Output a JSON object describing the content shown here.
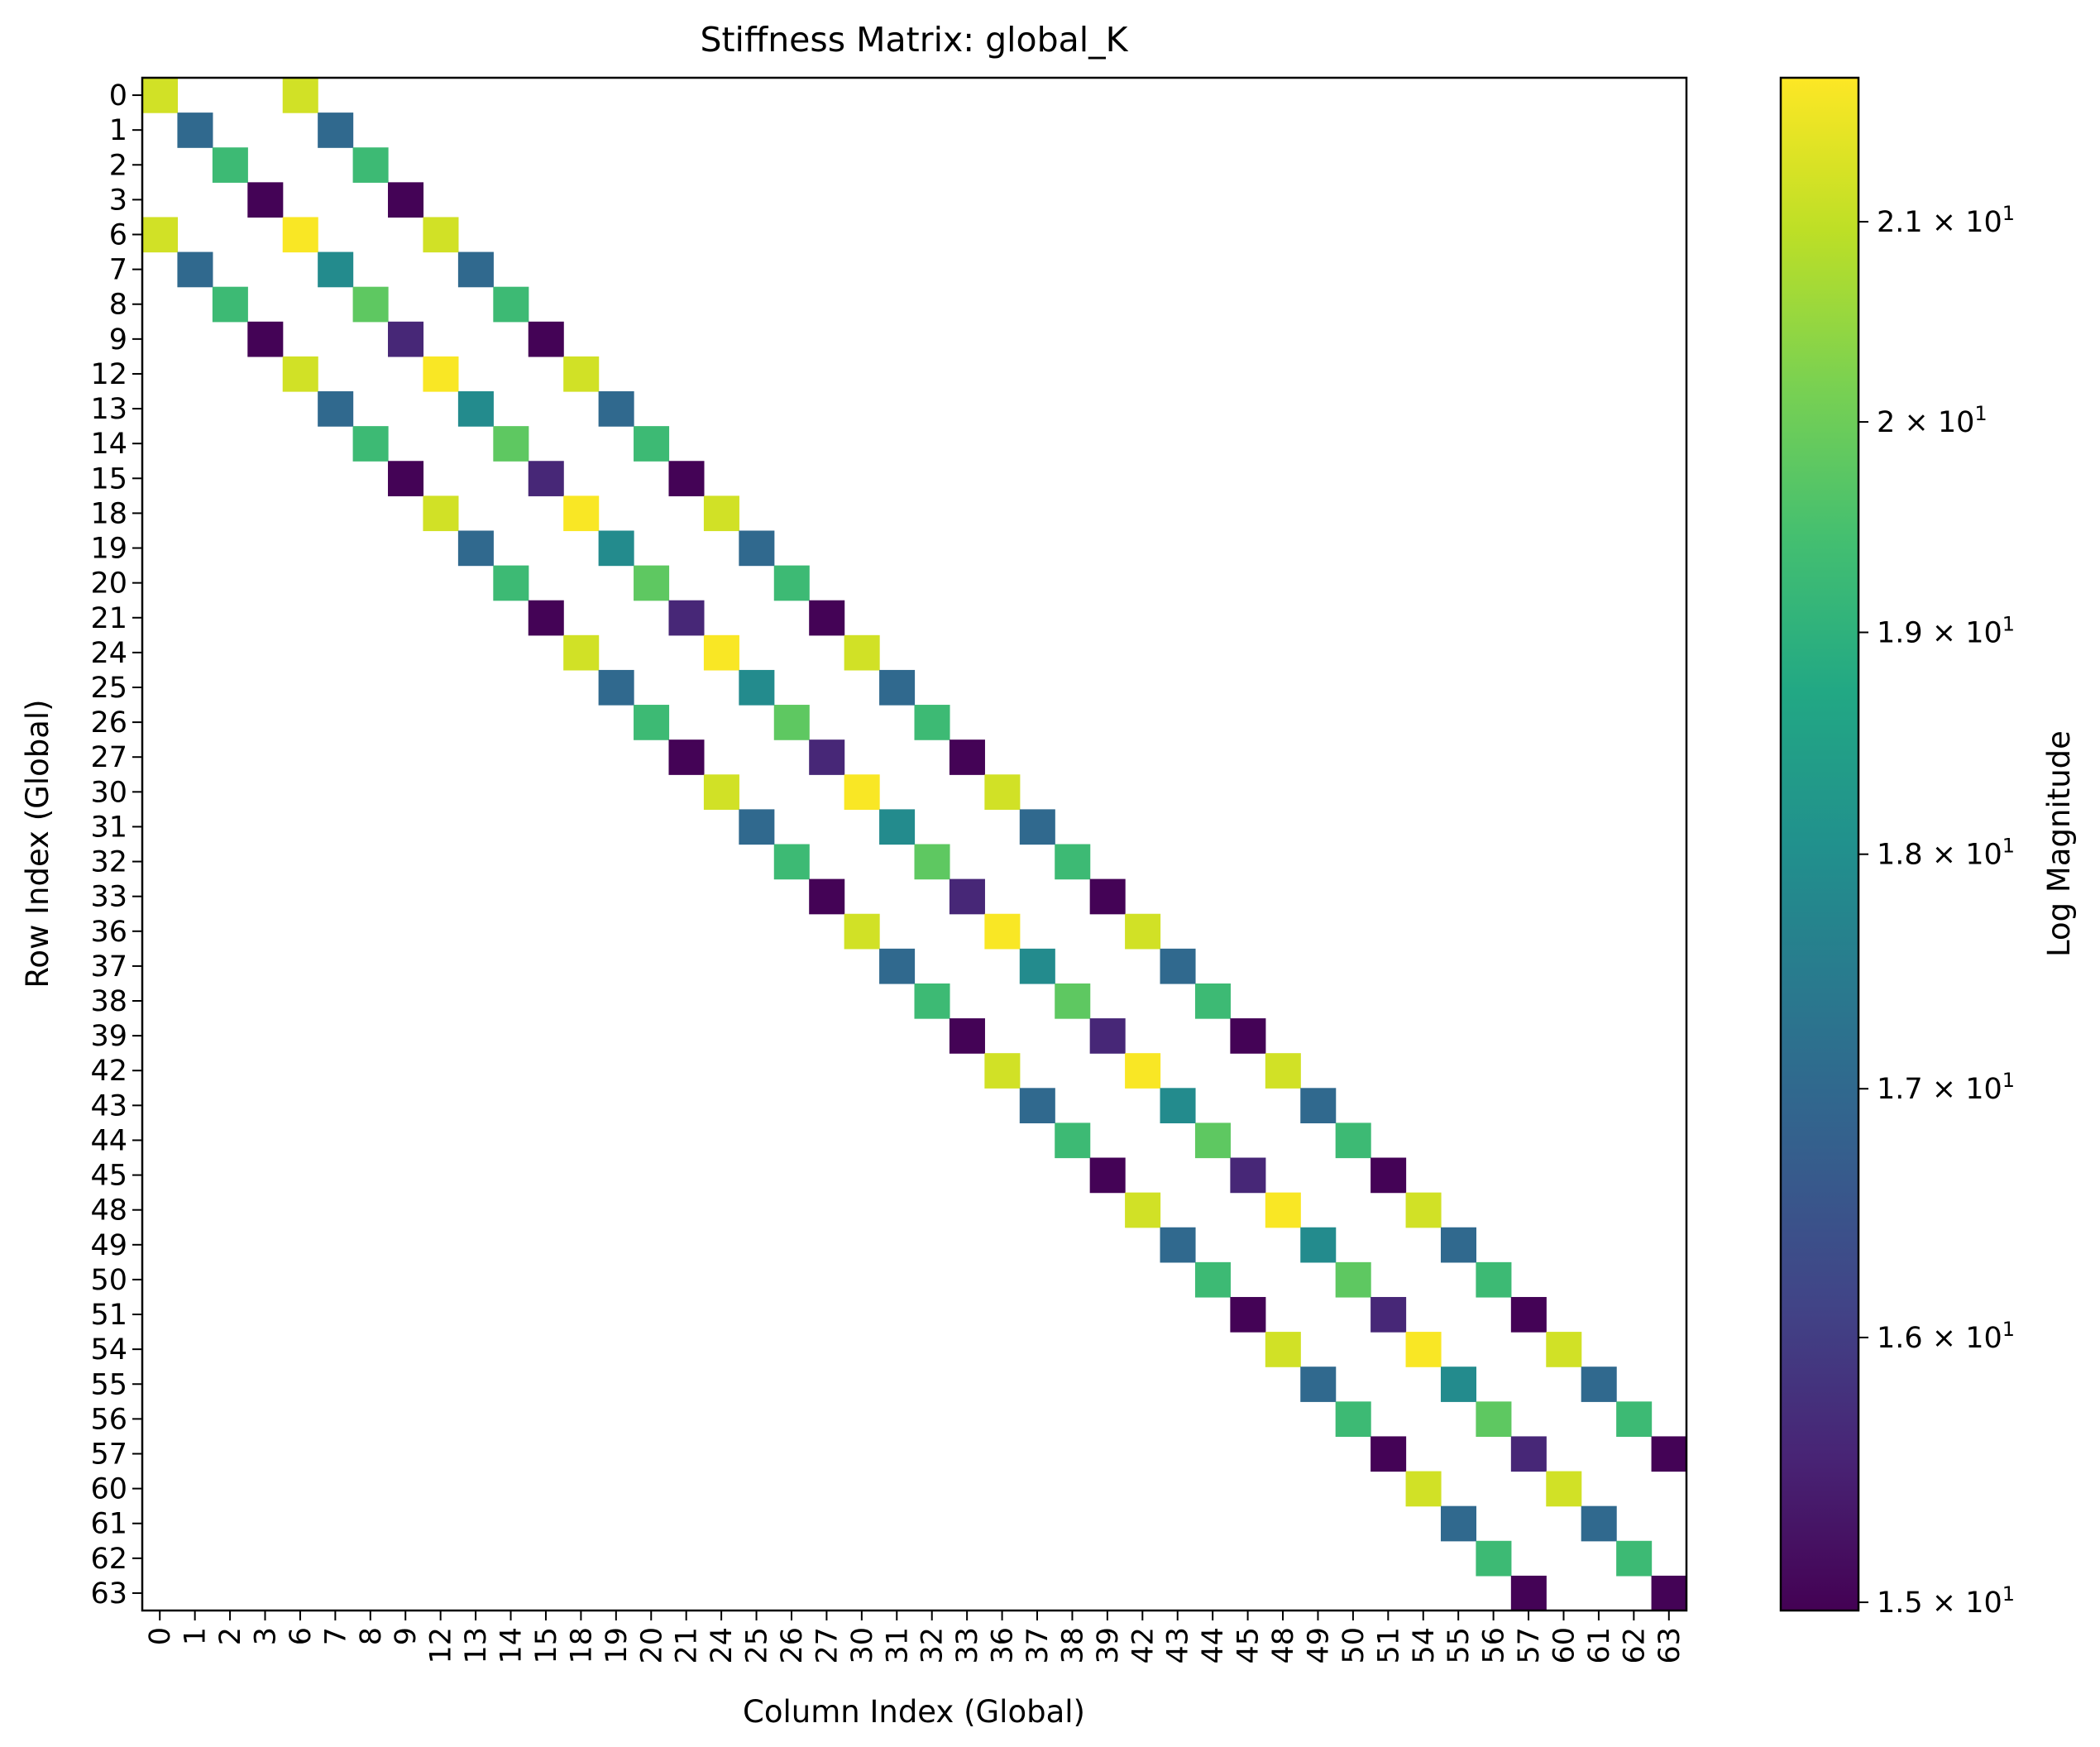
{
  "chart_data": {
    "type": "heatmap",
    "title": "Stiffness Matrix: global_K",
    "xlabel": "Column Index (Global)",
    "ylabel": "Row Index (Global)",
    "indices": [
      0,
      1,
      2,
      3,
      6,
      7,
      8,
      9,
      12,
      13,
      14,
      15,
      18,
      19,
      20,
      21,
      24,
      25,
      26,
      27,
      30,
      31,
      32,
      33,
      36,
      37,
      38,
      39,
      42,
      43,
      44,
      45,
      48,
      49,
      50,
      51,
      54,
      55,
      56,
      57,
      60,
      61,
      62,
      63
    ],
    "scale": "log",
    "colormap": "viridis",
    "colorbar": {
      "label": "Log Magnitude",
      "range": [
        14.97,
        21.75
      ],
      "ticks": [
        {
          "value": 15,
          "label": "1.5 × 10^1"
        },
        {
          "value": 16,
          "label": "1.6 × 10^1"
        },
        {
          "value": 17,
          "label": "1.7 × 10^1"
        },
        {
          "value": 18,
          "label": "1.8 × 10^1"
        },
        {
          "value": 19,
          "label": "1.9 × 10^1"
        },
        {
          "value": 20,
          "label": "2 × 10^1"
        },
        {
          "value": 21,
          "label": "2.1 × 10^1"
        }
      ]
    },
    "block_pattern": {
      "node_dofs": 4,
      "diagonal_values": [
        21.2,
        17.0,
        19.3,
        15.0
      ],
      "offdiag_values": [
        21.2,
        17.0,
        19.3,
        15.0
      ],
      "first_node_diagonal_values": [
        21.2,
        17.0,
        19.3,
        15.0
      ],
      "interior_diagonal_values": [
        21.7,
        17.9,
        19.8,
        15.6
      ],
      "last_node_diagonal_values": [
        21.2,
        17.0,
        19.3,
        15.0
      ]
    },
    "grid": false
  }
}
